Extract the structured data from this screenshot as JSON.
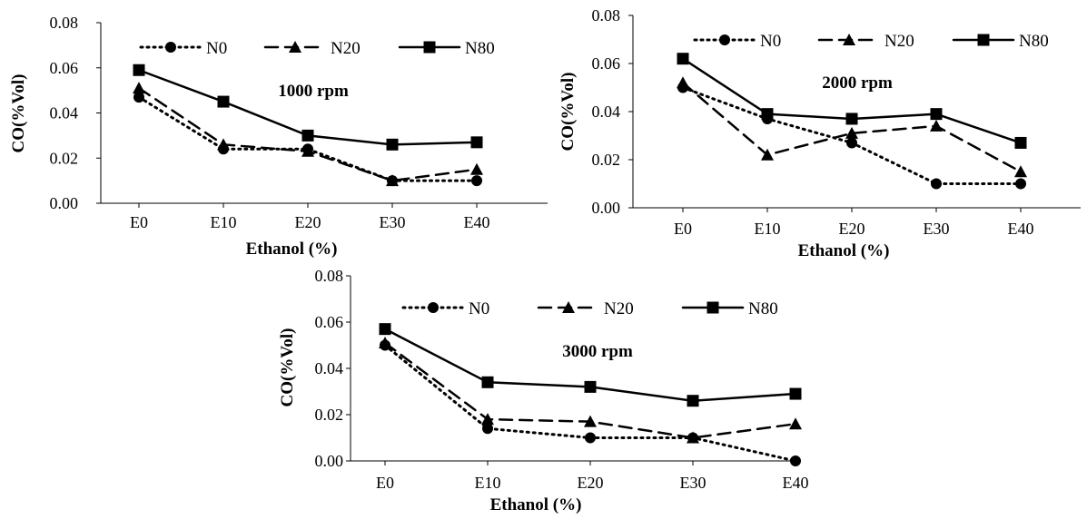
{
  "chart_data": [
    {
      "type": "line",
      "annotation": "1000 rpm",
      "xlabel": "Ethanol (%)",
      "ylabel": "CO(%Vol)",
      "categories": [
        "E0",
        "E10",
        "E20",
        "E30",
        "E40"
      ],
      "ylim": [
        0,
        0.08
      ],
      "yticks": [
        "0.00",
        "0.02",
        "0.04",
        "0.06",
        "0.08"
      ],
      "legend_position": "top",
      "series": [
        {
          "name": "N0",
          "values": [
            0.047,
            0.024,
            0.024,
            0.01,
            0.01
          ],
          "dash": "dotted",
          "marker": "circle"
        },
        {
          "name": "N20",
          "values": [
            0.051,
            0.026,
            0.023,
            0.01,
            0.015
          ],
          "dash": "dashed",
          "marker": "triangle"
        },
        {
          "name": "N80",
          "values": [
            0.059,
            0.045,
            0.03,
            0.026,
            0.027
          ],
          "dash": "solid",
          "marker": "square"
        }
      ]
    },
    {
      "type": "line",
      "annotation": "2000 rpm",
      "xlabel": "Ethanol (%)",
      "ylabel": "CO(%Vol)",
      "categories": [
        "E0",
        "E10",
        "E20",
        "E30",
        "E40"
      ],
      "ylim": [
        0,
        0.08
      ],
      "yticks": [
        "0.00",
        "0.02",
        "0.04",
        "0.06",
        "0.08"
      ],
      "legend_position": "top",
      "series": [
        {
          "name": "N0",
          "values": [
            0.05,
            0.037,
            0.027,
            0.01,
            0.01
          ],
          "dash": "dotted",
          "marker": "circle"
        },
        {
          "name": "N20",
          "values": [
            0.052,
            0.022,
            0.031,
            0.034,
            0.015
          ],
          "dash": "dashed",
          "marker": "triangle"
        },
        {
          "name": "N80",
          "values": [
            0.062,
            0.039,
            0.037,
            0.039,
            0.027
          ],
          "dash": "solid",
          "marker": "square"
        }
      ]
    },
    {
      "type": "line",
      "annotation": "3000 rpm",
      "xlabel": "Ethanol (%)",
      "ylabel": "CO(%Vol)",
      "categories": [
        "E0",
        "E10",
        "E20",
        "E30",
        "E40"
      ],
      "ylim": [
        0,
        0.08
      ],
      "yticks": [
        "0.00",
        "0.02",
        "0.04",
        "0.06",
        "0.08"
      ],
      "legend_position": "top",
      "series": [
        {
          "name": "N0",
          "values": [
            0.05,
            0.014,
            0.01,
            0.01,
            0.0
          ],
          "dash": "dotted",
          "marker": "circle"
        },
        {
          "name": "N20",
          "values": [
            0.051,
            0.018,
            0.017,
            0.01,
            0.016
          ],
          "dash": "dashed",
          "marker": "triangle"
        },
        {
          "name": "N80",
          "values": [
            0.057,
            0.034,
            0.032,
            0.026,
            0.029
          ],
          "dash": "solid",
          "marker": "square"
        }
      ]
    }
  ]
}
